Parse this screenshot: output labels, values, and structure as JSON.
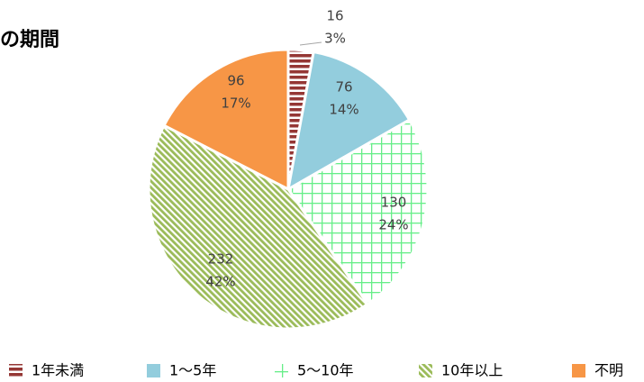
{
  "chart_data": {
    "type": "pie",
    "title": "の期間",
    "categories": [
      "1年未満",
      "1〜5年",
      "5〜10年",
      "10年以上",
      "不明"
    ],
    "values": [
      16,
      76,
      130,
      232,
      96
    ],
    "percent_labels": [
      "3%",
      "14%",
      "24%",
      "42%",
      "17%"
    ],
    "colors": [
      "#953735",
      "#93cddd",
      "#66ee88",
      "#9bbb59",
      "#f79646"
    ],
    "patterns": [
      "horizontal-stripes",
      "solid",
      "grid",
      "diagonal-stripes",
      "solid"
    ],
    "legend": "bottom"
  }
}
